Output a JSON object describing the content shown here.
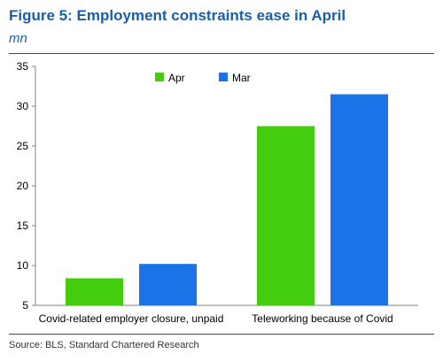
{
  "title": "Figure 5: Employment constraints ease in April",
  "subtitle": "mn",
  "source": "Source: BLS, Standard Chartered Research",
  "colors": {
    "Apr": "#44cc0f",
    "Mar": "#1b73e8",
    "title": "#1a5fa8"
  },
  "chart_data": {
    "type": "bar",
    "categories": [
      "Covid-related employer closure, unpaid",
      "Teleworking because of Covid"
    ],
    "series": [
      {
        "name": "Apr",
        "values": [
          8.4,
          27.5
        ]
      },
      {
        "name": "Mar",
        "values": [
          10.2,
          31.5
        ]
      }
    ],
    "ylim": [
      5,
      35
    ],
    "yticks": [
      "5",
      "10",
      "15",
      "20",
      "25",
      "30",
      "35"
    ],
    "xlabel": "",
    "ylabel": "",
    "grid": false,
    "legend": "top-center"
  }
}
